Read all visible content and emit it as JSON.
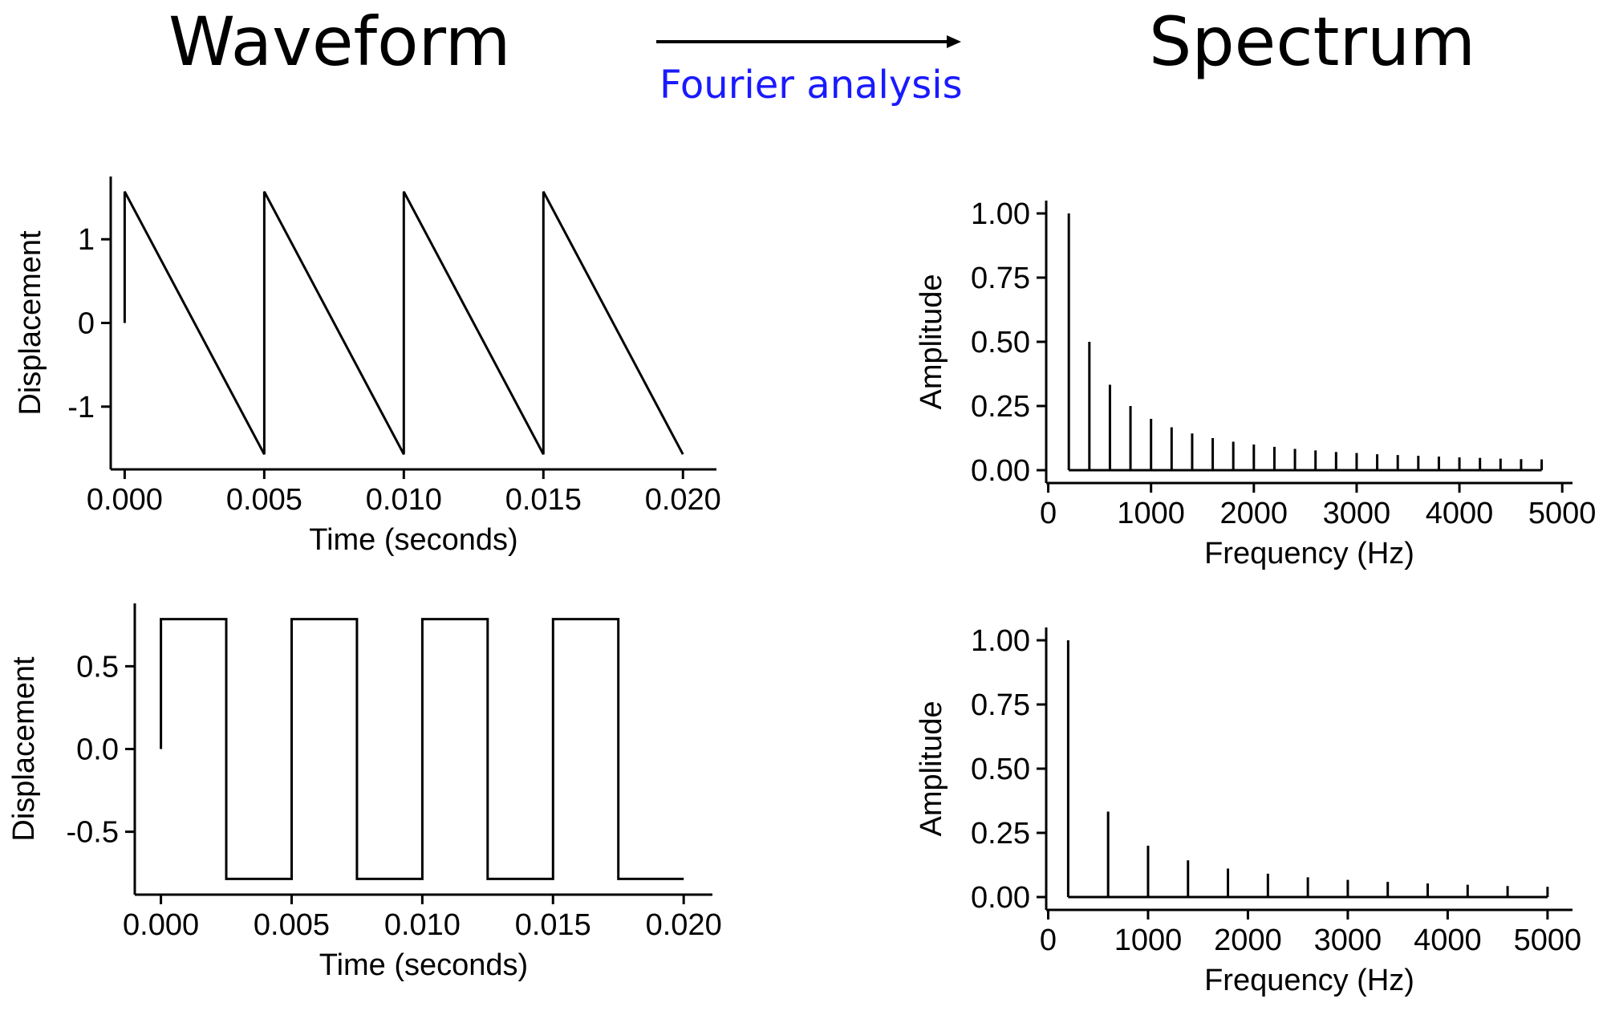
{
  "header": {
    "waveform_title": "Waveform",
    "spectrum_title": "Spectrum",
    "arrow_label": "Fourier analysis"
  },
  "chart_data": [
    {
      "id": "sawtooth-waveform",
      "type": "line",
      "xlabel": "Time (seconds)",
      "ylabel": "Displacement",
      "xlim": [
        -0.0005,
        0.0212
      ],
      "ylim": [
        -1.75,
        1.75
      ],
      "xticks": [
        0.0,
        0.005,
        0.01,
        0.015,
        0.02
      ],
      "xtick_labels": [
        "0.000",
        "0.005",
        "0.010",
        "0.015",
        "0.020"
      ],
      "yticks": [
        1,
        0,
        -1
      ],
      "ytick_labels": [
        "1",
        "0",
        "-1"
      ],
      "x": [
        0.0,
        0.0,
        0.005,
        0.005,
        0.01,
        0.01,
        0.015,
        0.015,
        0.02
      ],
      "y": [
        0.0,
        1.57,
        -1.57,
        1.57,
        -1.57,
        1.57,
        -1.57,
        1.57,
        -1.57
      ],
      "grid": false
    },
    {
      "id": "square-waveform",
      "type": "line",
      "xlabel": "Time (seconds)",
      "ylabel": "Displacement",
      "xlim": [
        -0.001,
        0.0211
      ],
      "ylim": [
        -0.88,
        0.88
      ],
      "xticks": [
        0.0,
        0.005,
        0.01,
        0.015,
        0.02
      ],
      "xtick_labels": [
        "0.000",
        "0.005",
        "0.010",
        "0.015",
        "0.020"
      ],
      "yticks": [
        0.5,
        0.0,
        -0.5
      ],
      "ytick_labels": [
        "0.5",
        "0.0",
        "-0.5"
      ],
      "x": [
        0.0,
        0.0,
        0.0025,
        0.0025,
        0.005,
        0.005,
        0.0075,
        0.0075,
        0.01,
        0.01,
        0.0125,
        0.0125,
        0.015,
        0.015,
        0.0175,
        0.0175,
        0.02
      ],
      "y": [
        0.0,
        0.785,
        0.785,
        -0.785,
        -0.785,
        0.785,
        0.785,
        -0.785,
        -0.785,
        0.785,
        0.785,
        -0.785,
        -0.785,
        0.785,
        0.785,
        -0.785,
        -0.785
      ],
      "grid": false
    },
    {
      "id": "sawtooth-spectrum",
      "type": "bar",
      "xlabel": "Frequency (Hz)",
      "ylabel": "Amplitude",
      "xlim": [
        -20,
        5100
      ],
      "ylim": [
        -0.05,
        1.05
      ],
      "xticks": [
        0,
        1000,
        2000,
        3000,
        4000,
        5000
      ],
      "xtick_labels": [
        "0",
        "1000",
        "2000",
        "3000",
        "4000",
        "5000"
      ],
      "yticks": [
        1.0,
        0.75,
        0.5,
        0.25,
        0.0
      ],
      "ytick_labels": [
        "1.00",
        "0.75",
        "0.50",
        "0.25",
        "0.00"
      ],
      "baseline": [
        200,
        4800
      ],
      "x": [
        200,
        400,
        600,
        800,
        1000,
        1200,
        1400,
        1600,
        1800,
        2000,
        2200,
        2400,
        2600,
        2800,
        3000,
        3200,
        3400,
        3600,
        3800,
        4000,
        4200,
        4400,
        4600,
        4800
      ],
      "values": [
        1.0,
        0.5,
        0.333,
        0.25,
        0.2,
        0.167,
        0.143,
        0.125,
        0.111,
        0.1,
        0.091,
        0.083,
        0.077,
        0.071,
        0.067,
        0.062,
        0.059,
        0.056,
        0.053,
        0.05,
        0.048,
        0.045,
        0.043,
        0.042
      ],
      "grid": false
    },
    {
      "id": "square-spectrum",
      "type": "bar",
      "xlabel": "Frequency (Hz)",
      "ylabel": "Amplitude",
      "xlim": [
        -20,
        5250
      ],
      "ylim": [
        -0.05,
        1.05
      ],
      "xticks": [
        0,
        1000,
        2000,
        3000,
        4000,
        5000
      ],
      "xtick_labels": [
        "0",
        "1000",
        "2000",
        "3000",
        "4000",
        "5000"
      ],
      "yticks": [
        1.0,
        0.75,
        0.5,
        0.25,
        0.0
      ],
      "ytick_labels": [
        "1.00",
        "0.75",
        "0.50",
        "0.25",
        "0.00"
      ],
      "baseline": [
        200,
        5000
      ],
      "x": [
        200,
        600,
        1000,
        1400,
        1800,
        2200,
        2600,
        3000,
        3400,
        3800,
        4200,
        4600,
        5000
      ],
      "values": [
        1.0,
        0.333,
        0.2,
        0.143,
        0.111,
        0.091,
        0.077,
        0.067,
        0.059,
        0.053,
        0.048,
        0.043,
        0.04
      ],
      "grid": false
    }
  ]
}
